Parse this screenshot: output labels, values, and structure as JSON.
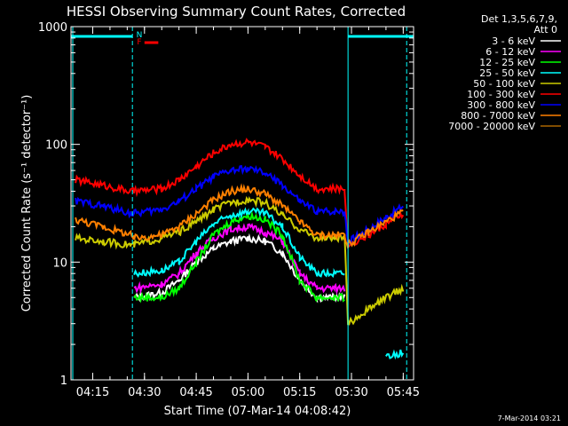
{
  "page": {
    "title": "HESSI Observing Summary Count Rates, Corrected",
    "timestamp": "7-Mar-2014 03:21"
  },
  "chart_data": {
    "type": "line",
    "title": "HESSI Observing Summary Count Rates, Corrected",
    "xlabel": "Start Time (07-Mar-14 04:08:42)",
    "ylabel": "Corrected Count Rate (s⁻¹ detector⁻¹)",
    "y_scale": "log",
    "xlim": [
      "04:08:42",
      "05:48:00"
    ],
    "ylim": [
      1,
      1000
    ],
    "xticks": [
      "04:15",
      "04:30",
      "04:45",
      "05:00",
      "05:15",
      "05:30",
      "05:45"
    ],
    "yticks": [
      "1",
      "10",
      "100",
      "1000"
    ],
    "legend_header": [
      "Det 1,3,5,6,7,9,",
      "Att 0"
    ],
    "legend_position": "right",
    "annotations": [
      {
        "text": "N",
        "color": "#00ffff"
      },
      {
        "text": "F",
        "color": "#ff0000"
      }
    ],
    "night_intervals": [
      [
        "04:08:42",
        "04:26:30"
      ],
      [
        "05:29:00",
        "05:48:00"
      ]
    ],
    "saa_intervals": [
      [
        "04:08:42",
        "04:26:30"
      ],
      [
        "05:29:00",
        "05:46:00"
      ]
    ],
    "flare_marker": [
      "04:30:00",
      "04:34:00"
    ],
    "x": [
      "04:10",
      "04:18",
      "04:26",
      "04:27",
      "04:35",
      "04:40",
      "04:45",
      "04:50",
      "04:55",
      "05:00",
      "05:05",
      "05:10",
      "05:15",
      "05:20",
      "05:25",
      "05:28",
      "05:29",
      "05:35",
      "05:40",
      "05:45"
    ],
    "series": [
      {
        "name": "3 - 6 keV",
        "color": "#ffffff",
        "values": [
          null,
          null,
          null,
          5.0,
          5.5,
          7,
          10,
          13,
          15,
          16,
          15,
          12,
          7,
          5,
          5,
          5,
          null,
          null,
          null,
          null
        ]
      },
      {
        "name": "6 - 12 keV",
        "color": "#ff00ff",
        "values": [
          null,
          null,
          null,
          6.0,
          6.5,
          8,
          12,
          16,
          19,
          20,
          18,
          15,
          8,
          6,
          6,
          6,
          null,
          null,
          null,
          null
        ]
      },
      {
        "name": "12 - 25 keV",
        "color": "#00ff00",
        "values": [
          null,
          null,
          null,
          5.0,
          5.0,
          6,
          10,
          17,
          22,
          25,
          23,
          17,
          7,
          5,
          5,
          5,
          null,
          null,
          null,
          null
        ]
      },
      {
        "name": "25 - 50 keV",
        "color": "#00ffff",
        "values": [
          3.5,
          null,
          null,
          8.0,
          8.5,
          10,
          15,
          21,
          25,
          27,
          26,
          20,
          11,
          8,
          8,
          8,
          null,
          null,
          1.6,
          1.7
        ]
      },
      {
        "name": "50 - 100 keV",
        "color": "#cccc00",
        "values": [
          16,
          15,
          14,
          14,
          16,
          18,
          22,
          28,
          32,
          34,
          32,
          25,
          19,
          16,
          16,
          16,
          3,
          4,
          5,
          6
        ]
      },
      {
        "name": "100 - 300 keV",
        "color": "#ff0000",
        "values": [
          50,
          45,
          40,
          40,
          42,
          50,
          65,
          85,
          100,
          105,
          95,
          75,
          55,
          42,
          42,
          42,
          14,
          17,
          21,
          26
        ]
      },
      {
        "name": "300 - 800 keV",
        "color": "#0000ff",
        "values": [
          33,
          30,
          26,
          26,
          28,
          33,
          42,
          53,
          60,
          62,
          57,
          45,
          33,
          27,
          27,
          27,
          15,
          19,
          24,
          30
        ]
      },
      {
        "name": "800 - 7000 keV",
        "color": "#ff8000",
        "values": [
          23,
          20,
          17,
          16,
          17,
          20,
          26,
          34,
          40,
          42,
          38,
          30,
          22,
          17,
          17,
          17,
          14,
          18,
          22,
          27
        ]
      },
      {
        "name": "7000 - 20000 keV",
        "color": "#aa6600",
        "values": [
          null,
          null,
          null,
          null,
          null,
          null,
          null,
          null,
          null,
          null,
          null,
          null,
          null,
          null,
          null,
          null,
          null,
          null,
          null,
          null
        ]
      }
    ]
  }
}
